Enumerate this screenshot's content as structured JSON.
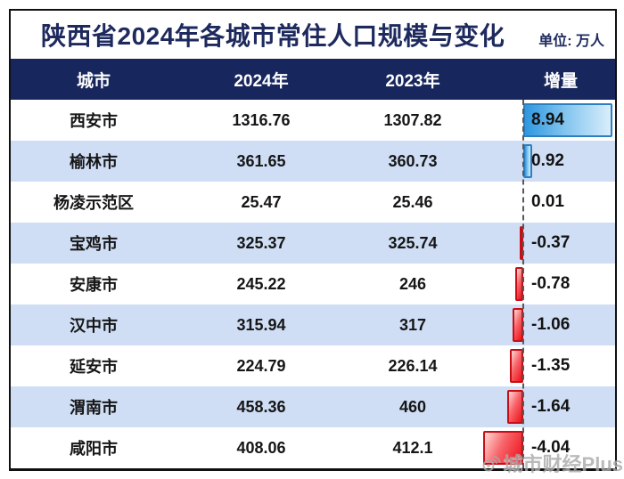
{
  "title": "陕西省2024年各城市常住人口规模与变化",
  "unit_label": "单位: 万人",
  "watermark": {
    "label": "城市财经Plus",
    "icon": "broadcast-logo-icon"
  },
  "colors": {
    "header_bg": "#17265c",
    "title_text": "#1e2a5e",
    "row_alt_bg": "#cfdef5",
    "positive_bar": "#2e97e0",
    "negative_bar": "#ee1019",
    "baseline": "#585858"
  },
  "table": {
    "columns": [
      "城市",
      "2024年",
      "2023年",
      "增量"
    ],
    "rows": [
      {
        "city": "西安市",
        "y2024": "1316.76",
        "y2023": "1307.82",
        "delta": "8.94"
      },
      {
        "city": "榆林市",
        "y2024": "361.65",
        "y2023": "360.73",
        "delta": "0.92"
      },
      {
        "city": "杨凌示范区",
        "y2024": "25.47",
        "y2023": "25.46",
        "delta": "0.01"
      },
      {
        "city": "宝鸡市",
        "y2024": "325.37",
        "y2023": "325.74",
        "delta": "-0.37"
      },
      {
        "city": "安康市",
        "y2024": "245.22",
        "y2023": "246",
        "delta": "-0.78"
      },
      {
        "city": "汉中市",
        "y2024": "315.94",
        "y2023": "317",
        "delta": "-1.06"
      },
      {
        "city": "延安市",
        "y2024": "224.79",
        "y2023": "226.14",
        "delta": "-1.35"
      },
      {
        "city": "渭南市",
        "y2024": "458.36",
        "y2023": "460",
        "delta": "-1.64"
      },
      {
        "city": "咸阳市",
        "y2024": "408.06",
        "y2023": "412.1",
        "delta": "-4.04"
      }
    ]
  },
  "chart_data": {
    "type": "table",
    "title": "陕西省2024年各城市常住人口规模与变化",
    "unit": "万人",
    "columns": [
      "城市",
      "2024年",
      "2023年",
      "增量"
    ],
    "rows": [
      [
        "西安市",
        1316.76,
        1307.82,
        8.94
      ],
      [
        "榆林市",
        361.65,
        360.73,
        0.92
      ],
      [
        "杨凌示范区",
        25.47,
        25.46,
        0.01
      ],
      [
        "宝鸡市",
        325.37,
        325.74,
        -0.37
      ],
      [
        "安康市",
        245.22,
        246,
        -0.78
      ],
      [
        "汉中市",
        315.94,
        317,
        -1.06
      ],
      [
        "延安市",
        224.79,
        226.14,
        -1.35
      ],
      [
        "渭南市",
        458.36,
        460,
        -1.64
      ],
      [
        "咸阳市",
        408.06,
        412.1,
        -4.04
      ]
    ],
    "embedded_bar": {
      "type": "bar",
      "orientation": "horizontal",
      "value_column": "增量",
      "values": [
        8.94,
        0.92,
        0.01,
        -0.37,
        -0.78,
        -1.06,
        -1.35,
        -1.64,
        -4.04
      ],
      "baseline": 0,
      "positive_color": "#2e97e0",
      "negative_color": "#ee1019"
    }
  }
}
